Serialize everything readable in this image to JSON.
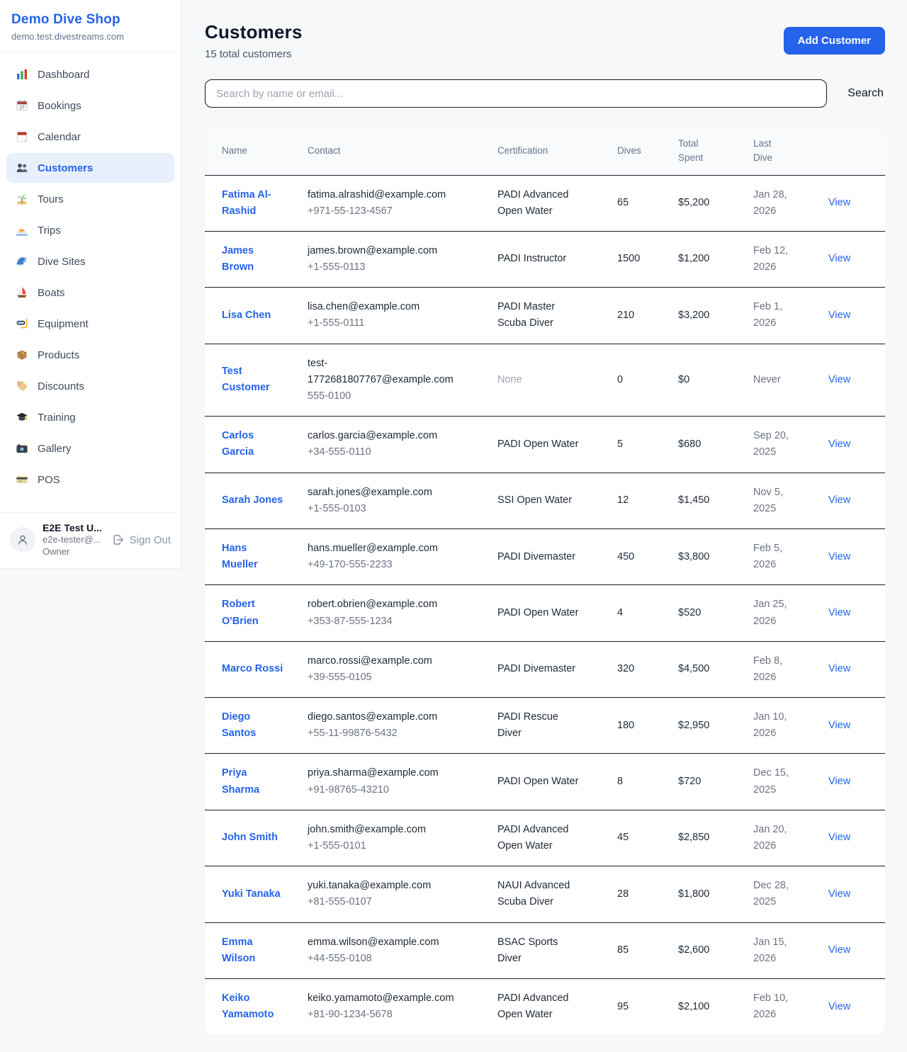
{
  "colors": {
    "accent": "#2563eb",
    "active_nav_bg": "#e8f0fd",
    "page_bg": "#f6f8fa",
    "muted_text": "#64748b",
    "dark_text": "#0f172a",
    "row_divider": "#161d29"
  },
  "sidebar": {
    "brand": {
      "name": "Demo Dive Shop",
      "domain": "demo.test.divestreams.com"
    },
    "items": [
      {
        "label": "Dashboard",
        "icon": "dashboard-icon",
        "active": false
      },
      {
        "label": "Bookings",
        "icon": "bookings-icon",
        "active": false
      },
      {
        "label": "Calendar",
        "icon": "calendar-icon",
        "active": false
      },
      {
        "label": "Customers",
        "icon": "customers-icon",
        "active": true
      },
      {
        "label": "Tours",
        "icon": "tours-icon",
        "active": false
      },
      {
        "label": "Trips",
        "icon": "trips-icon",
        "active": false
      },
      {
        "label": "Dive Sites",
        "icon": "dive-sites-icon",
        "active": false
      },
      {
        "label": "Boats",
        "icon": "boats-icon",
        "active": false
      },
      {
        "label": "Equipment",
        "icon": "equipment-icon",
        "active": false
      },
      {
        "label": "Products",
        "icon": "products-icon",
        "active": false
      },
      {
        "label": "Discounts",
        "icon": "discounts-icon",
        "active": false
      },
      {
        "label": "Training",
        "icon": "training-icon",
        "active": false
      },
      {
        "label": "Gallery",
        "icon": "gallery-icon",
        "active": false
      },
      {
        "label": "POS",
        "icon": "pos-icon",
        "active": false
      }
    ],
    "user": {
      "name": "E2E Test U...",
      "email": "e2e-tester@...",
      "role": "Owner",
      "sign_out_label": "Sign Out"
    }
  },
  "header": {
    "title": "Customers",
    "subtitle": "15 total customers",
    "add_button_label": "Add Customer"
  },
  "search": {
    "placeholder": "Search by name or email...",
    "button_label": "Search"
  },
  "table": {
    "columns": [
      "Name",
      "Contact",
      "Certification",
      "Dives",
      "Total Spent",
      "Last Dive"
    ],
    "view_label": "View",
    "rows": [
      {
        "name": "Fatima Al-Rashid",
        "email": "fatima.alrashid@example.com",
        "phone": "+971-55-123-4567",
        "certification": "PADI Advanced Open Water",
        "dives": "65",
        "total_spent": "$5,200",
        "last_dive": "Jan 28, 2026"
      },
      {
        "name": "James Brown",
        "email": "james.brown@example.com",
        "phone": "+1-555-0113",
        "certification": "PADI Instructor",
        "dives": "1500",
        "total_spent": "$1,200",
        "last_dive": "Feb 12, 2026"
      },
      {
        "name": "Lisa Chen",
        "email": "lisa.chen@example.com",
        "phone": "+1-555-0111",
        "certification": "PADI Master Scuba Diver",
        "dives": "210",
        "total_spent": "$3,200",
        "last_dive": "Feb 1, 2026"
      },
      {
        "name": "Test Customer",
        "email": "test-1772681807767@example.com",
        "phone": "555-0100",
        "certification": "None",
        "dives": "0",
        "total_spent": "$0",
        "last_dive": "Never"
      },
      {
        "name": "Carlos Garcia",
        "email": "carlos.garcia@example.com",
        "phone": "+34-555-0110",
        "certification": "PADI Open Water",
        "dives": "5",
        "total_spent": "$680",
        "last_dive": "Sep 20, 2025"
      },
      {
        "name": "Sarah Jones",
        "email": "sarah.jones@example.com",
        "phone": "+1-555-0103",
        "certification": "SSI Open Water",
        "dives": "12",
        "total_spent": "$1,450",
        "last_dive": "Nov 5, 2025"
      },
      {
        "name": "Hans Mueller",
        "email": "hans.mueller@example.com",
        "phone": "+49-170-555-2233",
        "certification": "PADI Divemaster",
        "dives": "450",
        "total_spent": "$3,800",
        "last_dive": "Feb 5, 2026"
      },
      {
        "name": "Robert O'Brien",
        "email": "robert.obrien@example.com",
        "phone": "+353-87-555-1234",
        "certification": "PADI Open Water",
        "dives": "4",
        "total_spent": "$520",
        "last_dive": "Jan 25, 2026"
      },
      {
        "name": "Marco Rossi",
        "email": "marco.rossi@example.com",
        "phone": "+39-555-0105",
        "certification": "PADI Divemaster",
        "dives": "320",
        "total_spent": "$4,500",
        "last_dive": "Feb 8, 2026"
      },
      {
        "name": "Diego Santos",
        "email": "diego.santos@example.com",
        "phone": "+55-11-99876-5432",
        "certification": "PADI Rescue Diver",
        "dives": "180",
        "total_spent": "$2,950",
        "last_dive": "Jan 10, 2026"
      },
      {
        "name": "Priya Sharma",
        "email": "priya.sharma@example.com",
        "phone": "+91-98765-43210",
        "certification": "PADI Open Water",
        "dives": "8",
        "total_spent": "$720",
        "last_dive": "Dec 15, 2025"
      },
      {
        "name": "John Smith",
        "email": "john.smith@example.com",
        "phone": "+1-555-0101",
        "certification": "PADI Advanced Open Water",
        "dives": "45",
        "total_spent": "$2,850",
        "last_dive": "Jan 20, 2026"
      },
      {
        "name": "Yuki Tanaka",
        "email": "yuki.tanaka@example.com",
        "phone": "+81-555-0107",
        "certification": "NAUI Advanced Scuba Diver",
        "dives": "28",
        "total_spent": "$1,800",
        "last_dive": "Dec 28, 2025"
      },
      {
        "name": "Emma Wilson",
        "email": "emma.wilson@example.com",
        "phone": "+44-555-0108",
        "certification": "BSAC Sports Diver",
        "dives": "85",
        "total_spent": "$2,600",
        "last_dive": "Jan 15, 2026"
      },
      {
        "name": "Keiko Yamamoto",
        "email": "keiko.yamamoto@example.com",
        "phone": "+81-90-1234-5678",
        "certification": "PADI Advanced Open Water",
        "dives": "95",
        "total_spent": "$2,100",
        "last_dive": "Feb 10, 2026"
      }
    ]
  }
}
